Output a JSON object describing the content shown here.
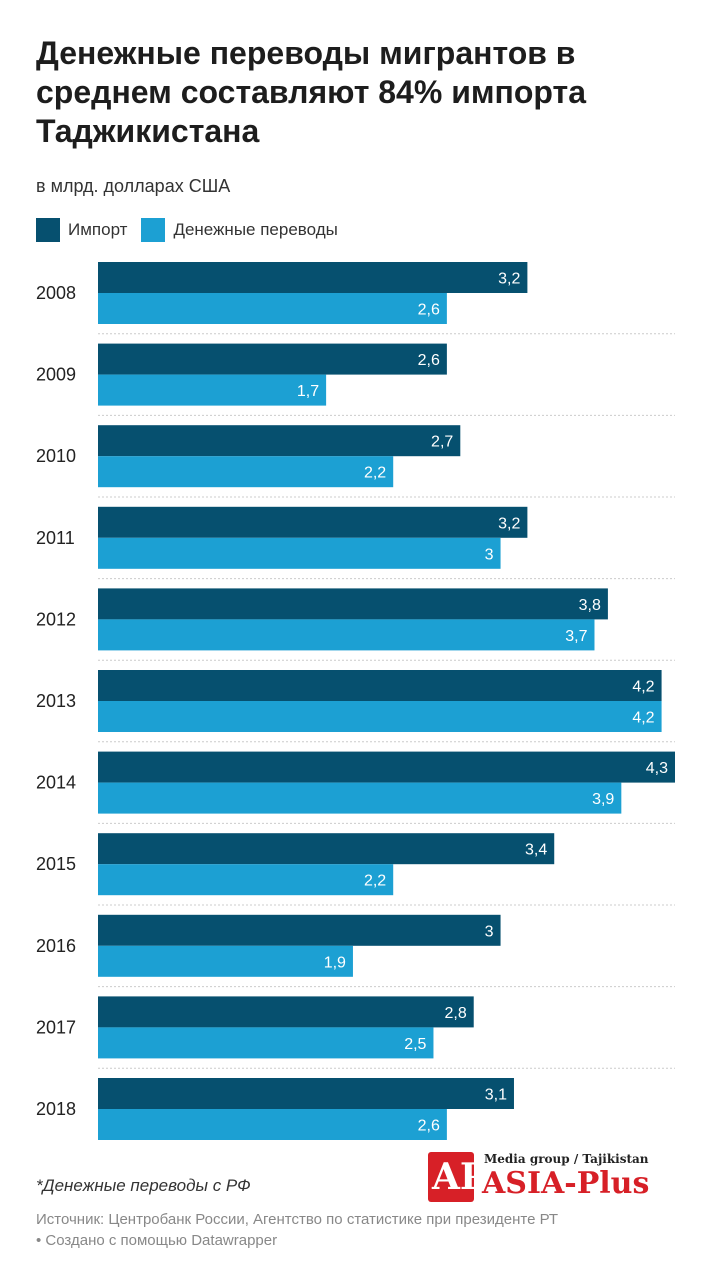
{
  "title": "Денежные переводы мигрантов в среднем составляют 84% импорта Таджикистана",
  "subtitle": "в млрд. долларах США",
  "legend": [
    {
      "label": "Импорт",
      "color": "#06506f"
    },
    {
      "label": "Денежные переводы",
      "color": "#1ca0d3"
    }
  ],
  "footnote": "*Денежные переводы с РФ",
  "source_line1": "Источник: Центробанк России, Агентство по статистике при президенте РТ",
  "source_line2": "• Создано с помощью Datawrapper",
  "logo": {
    "tagline": "Media group / Tajikistan",
    "name": "ASIA-Plus",
    "color": "#d72027"
  },
  "chart_data": {
    "type": "bar",
    "orientation": "horizontal",
    "categories": [
      "2008",
      "2009",
      "2010",
      "2011",
      "2012",
      "2013",
      "2014",
      "2015",
      "2016",
      "2017",
      "2018"
    ],
    "series": [
      {
        "name": "Импорт",
        "color": "#06506f",
        "values": [
          3.2,
          2.6,
          2.7,
          3.2,
          3.8,
          4.2,
          4.3,
          3.4,
          3.0,
          2.8,
          3.1
        ],
        "labels": [
          "3,2",
          "2,6",
          "2,7",
          "3,2",
          "3,8",
          "4,2",
          "4,3",
          "3,4",
          "3",
          "2,8",
          "3,1"
        ]
      },
      {
        "name": "Денежные переводы",
        "color": "#1ca0d3",
        "values": [
          2.6,
          1.7,
          2.2,
          3.0,
          3.7,
          4.2,
          3.9,
          2.2,
          1.9,
          2.5,
          2.6
        ],
        "labels": [
          "2,6",
          "1,7",
          "2,2",
          "3",
          "3,7",
          "4,2",
          "3,9",
          "2,2",
          "1,9",
          "2,5",
          "2,6"
        ]
      }
    ],
    "xlim": [
      0,
      4.3
    ],
    "grid": false,
    "legend_position": "top-left"
  }
}
